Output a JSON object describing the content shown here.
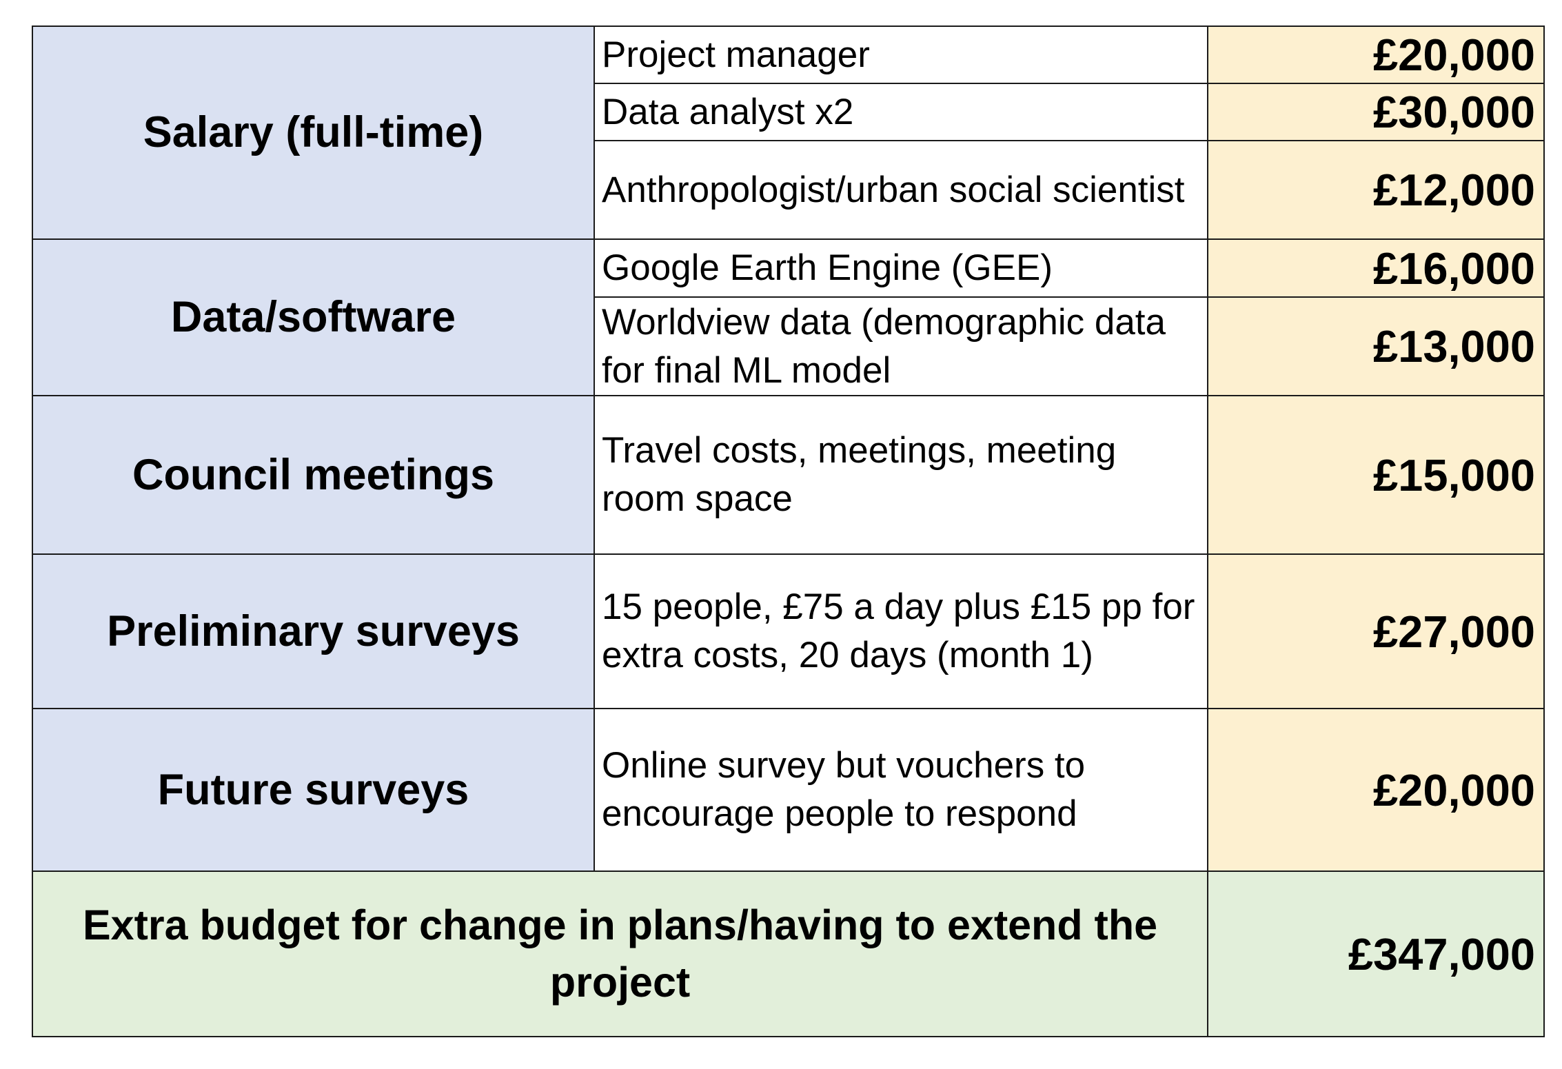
{
  "categories": [
    {
      "name": "Salary (full-time)",
      "items": [
        {
          "description": "Project manager",
          "amount": "£20,000"
        },
        {
          "description": "Data analyst x2",
          "amount": "£30,000"
        },
        {
          "description": "Anthropologist/urban social scientist",
          "amount": "£12,000"
        }
      ]
    },
    {
      "name": "Data/software",
      "items": [
        {
          "description": "Google Earth Engine (GEE)",
          "amount": "£16,000"
        },
        {
          "description": "Worldview data (demographic data for final ML model",
          "amount": "£13,000"
        }
      ]
    },
    {
      "name": "Council meetings",
      "items": [
        {
          "description": "Travel costs, meetings, meeting room space",
          "amount": "£15,000"
        }
      ]
    },
    {
      "name": "Preliminary surveys",
      "items": [
        {
          "description": "15 people, £75 a day plus £15 pp for extra costs, 20 days (month 1)",
          "amount": "£27,000"
        }
      ]
    },
    {
      "name": "Future surveys",
      "items": [
        {
          "description": "Online survey but vouchers to encourage people to respond",
          "amount": "£20,000"
        }
      ]
    }
  ],
  "total": {
    "label": "Extra budget for change in plans/having to extend the project",
    "amount": "£347,000"
  },
  "colors": {
    "category_fill": "#dae1f2",
    "amount_fill": "#fdf0d0",
    "total_fill": "#e2efda",
    "border": "#1a1a1a"
  }
}
